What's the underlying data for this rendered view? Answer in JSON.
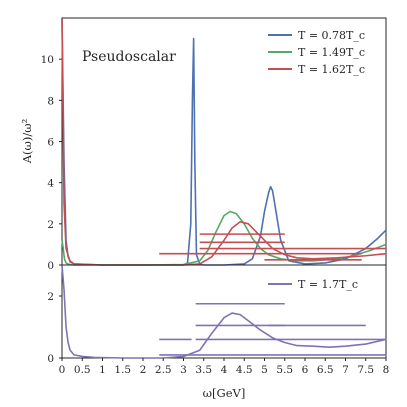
{
  "chart_data": [
    {
      "type": "line",
      "ylabel": "A(ω)/ω²",
      "annotation": "Pseudoscalar",
      "xlim": [
        0,
        8
      ],
      "ylim": [
        0,
        12
      ],
      "yticks": [
        0,
        2,
        4,
        6,
        8,
        10
      ],
      "legend_position": "top-right",
      "series": [
        {
          "name": "T = 0.78T_c",
          "color": "#4c72b0",
          "x": [
            0,
            0.05,
            0.1,
            0.15,
            0.2,
            0.3,
            1.0,
            2.0,
            3.0,
            3.1,
            3.18,
            3.22,
            3.25,
            3.28,
            3.32,
            3.4,
            3.5,
            4.0,
            4.5,
            4.7,
            4.9,
            5.0,
            5.1,
            5.15,
            5.2,
            5.3,
            5.4,
            5.6,
            6.0,
            6.5,
            7.0,
            7.5,
            7.8,
            8.0
          ],
          "y": [
            12,
            5,
            1.2,
            0.4,
            0.2,
            0.05,
            0,
            0,
            0,
            0.1,
            2.0,
            8.0,
            11.0,
            5.0,
            0.5,
            0.05,
            0,
            0,
            0.05,
            0.3,
            1.4,
            2.6,
            3.5,
            3.8,
            3.6,
            2.4,
            1.2,
            0.2,
            0.05,
            0.1,
            0.3,
            0.8,
            1.3,
            1.7
          ]
        },
        {
          "name": "T = 1.49T_c",
          "color": "#55a868",
          "x": [
            0,
            0.03,
            0.06,
            0.1,
            0.15,
            0.25,
            1.0,
            2.0,
            3.0,
            3.4,
            3.6,
            3.8,
            4.0,
            4.15,
            4.3,
            4.5,
            4.7,
            4.9,
            5.1,
            5.4,
            5.8,
            6.2,
            6.8,
            7.2,
            7.6,
            8.0
          ],
          "y": [
            1.2,
            0.8,
            0.3,
            0.1,
            0.05,
            0,
            0,
            0,
            0.02,
            0.2,
            0.7,
            1.6,
            2.4,
            2.6,
            2.5,
            2.0,
            1.3,
            0.8,
            0.5,
            0.3,
            0.2,
            0.2,
            0.3,
            0.45,
            0.7,
            1.0
          ]
        },
        {
          "name": "T = 1.62T_c",
          "color": "#c44e52",
          "x": [
            0,
            0.05,
            0.1,
            0.2,
            0.3,
            1.0,
            2.0,
            3.0,
            3.4,
            3.7,
            4.0,
            4.2,
            4.4,
            4.6,
            4.8,
            5.0,
            5.2,
            5.5,
            5.8,
            6.2,
            6.8,
            7.5,
            8.0
          ],
          "y": [
            12,
            3,
            0.8,
            0.15,
            0.05,
            0,
            0,
            0,
            0.05,
            0.4,
            1.2,
            1.8,
            2.1,
            2.0,
            1.6,
            1.2,
            0.8,
            0.5,
            0.35,
            0.3,
            0.35,
            0.45,
            0.55
          ]
        }
      ],
      "error_bars": [
        {
          "color": "#c44e52",
          "x_range": [
            2.4,
            7.4
          ],
          "y": 0.55
        },
        {
          "color": "#c44e52",
          "x_range": [
            3.4,
            5.5
          ],
          "y": 1.5
        },
        {
          "color": "#c44e52",
          "x_range": [
            3.4,
            5.5
          ],
          "y": 1.1
        },
        {
          "color": "#c44e52",
          "x_range": [
            3.4,
            8.0
          ],
          "y": 0.8
        },
        {
          "color": "#c44e52",
          "x_range": [
            5.0,
            7.4
          ],
          "y": 0.25
        }
      ]
    },
    {
      "type": "line",
      "xlabel": "ω[GeV]",
      "xlim": [
        0,
        8
      ],
      "ylim": [
        0,
        3
      ],
      "xticks": [
        0,
        0.5,
        1,
        1.5,
        2,
        2.5,
        3,
        3.5,
        4,
        4.5,
        5,
        5.5,
        6,
        6.5,
        7,
        7.5,
        8
      ],
      "yticks": [
        0,
        2
      ],
      "legend_position": "top-right",
      "series": [
        {
          "name": "T = 1.7T_c",
          "color": "#8172b2",
          "x": [
            0,
            0.05,
            0.1,
            0.15,
            0.2,
            0.3,
            0.5,
            0.8,
            1.5,
            2.5,
            3.0,
            3.4,
            3.7,
            4.0,
            4.2,
            4.4,
            4.6,
            4.9,
            5.2,
            5.5,
            5.8,
            6.2,
            6.6,
            7.0,
            7.5,
            8.0
          ],
          "y": [
            3.0,
            2.2,
            1.0,
            0.5,
            0.25,
            0.1,
            0.05,
            0.02,
            0,
            0,
            0.05,
            0.25,
            0.8,
            1.3,
            1.45,
            1.4,
            1.2,
            0.9,
            0.65,
            0.5,
            0.4,
            0.38,
            0.35,
            0.38,
            0.45,
            0.6
          ]
        }
      ],
      "error_bars": [
        {
          "color": "#8172b2",
          "x_range": [
            2.4,
            3.2
          ],
          "y": 0.6
        },
        {
          "color": "#8172b2",
          "x_range": [
            3.3,
            5.5
          ],
          "y": 1.75
        },
        {
          "color": "#8172b2",
          "x_range": [
            3.3,
            5.5
          ],
          "y": 1.05
        },
        {
          "color": "#8172b2",
          "x_range": [
            5.1,
            7.5
          ],
          "y": 1.05
        },
        {
          "color": "#8172b2",
          "x_range": [
            3.3,
            8.0
          ],
          "y": 0.6
        },
        {
          "color": "#8172b2",
          "x_range": [
            2.4,
            8.0
          ],
          "y": 0.1
        }
      ]
    }
  ]
}
